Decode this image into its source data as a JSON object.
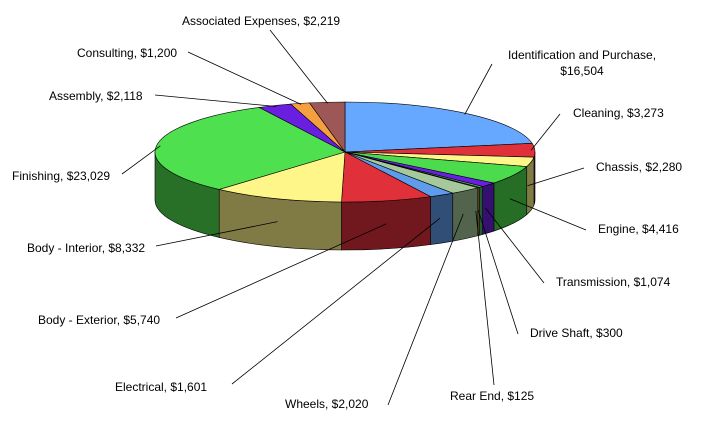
{
  "chart_data": {
    "type": "pie",
    "title": "",
    "start_angle_deg": -90,
    "slices": [
      {
        "label": "Identification and Purchase",
        "value": 16504,
        "display": "Identification and Purchase, $16,504",
        "color": "#66A8FF"
      },
      {
        "label": "Cleaning",
        "value": 3273,
        "display": "Cleaning, $3,273",
        "color": "#E0303A"
      },
      {
        "label": "Chassis",
        "value": 2280,
        "display": "Chassis, $2,280",
        "color": "#FFF68A"
      },
      {
        "label": "Engine",
        "value": 4416,
        "display": "Engine, $4,416",
        "color": "#4CDB4C"
      },
      {
        "label": "Transmission",
        "value": 1074,
        "display": "Transmission, $1,074",
        "color": "#6A1FE0"
      },
      {
        "label": "Drive Shaft",
        "value": 300,
        "display": "Drive Shaft, $300",
        "color": "#4FB26C"
      },
      {
        "label": "Rear End",
        "value": 125,
        "display": "Rear End, $125",
        "color": "#F5A623"
      },
      {
        "label": "Wheels",
        "value": 2020,
        "display": "Wheels, $2,020",
        "color": "#A6C89A"
      },
      {
        "label": "Electrical",
        "value": 1601,
        "display": "Electrical, $1,601",
        "color": "#5F9CEB"
      },
      {
        "label": "Body - Exterior",
        "value": 5740,
        "display": "Body - Exterior, $5,740",
        "color": "#E0303A"
      },
      {
        "label": "Body - Interior",
        "value": 8332,
        "display": "Body - Interior, $8,332",
        "color": "#FFF68A"
      },
      {
        "label": "Finishing",
        "value": 23029,
        "display": "Finishing, $23,029",
        "color": "#4FE04F"
      },
      {
        "label": "Assembly",
        "value": 2118,
        "display": "Assembly, $2,118",
        "color": "#6A1FE0"
      },
      {
        "label": "Consulting",
        "value": 1200,
        "display": "Consulting, $1,200",
        "color": "#F5A040"
      },
      {
        "label": "Associated Expenses",
        "value": 2219,
        "display": "Associated Expenses, $2,219",
        "color": "#9E5757"
      }
    ]
  }
}
